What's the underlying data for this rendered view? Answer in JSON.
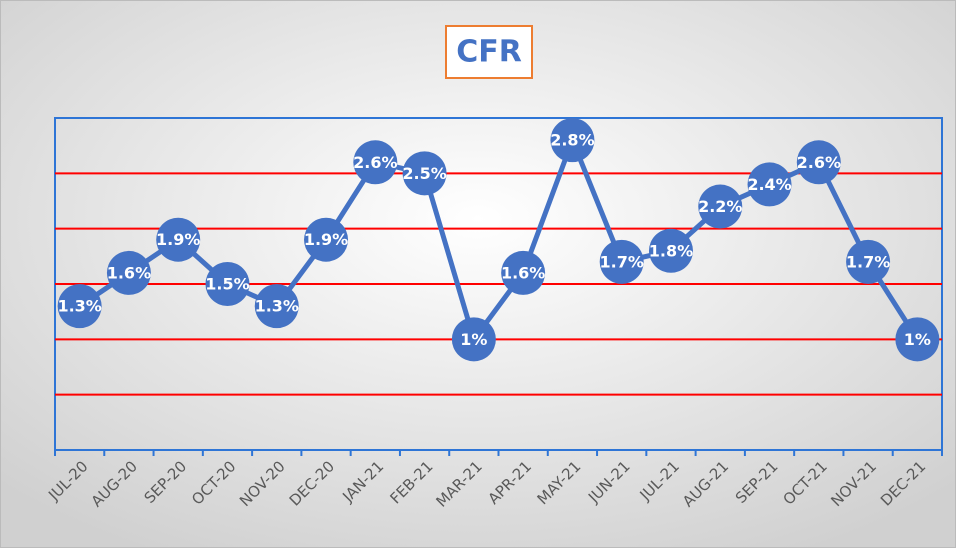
{
  "chart_data": {
    "type": "line",
    "title": "CFR",
    "categories": [
      "JUL-20",
      "AUG-20",
      "SEP-20",
      "OCT-20",
      "NOV-20",
      "DEC-20",
      "JAN-21",
      "FEB-21",
      "MAR-21",
      "APR-21",
      "MAY-21",
      "JUN-21",
      "JUL-21",
      "AUG-21",
      "SEP-21",
      "OCT-21",
      "NOV-21",
      "DEC-21"
    ],
    "series": [
      {
        "name": "CFR",
        "color": "#4472c4",
        "values": [
          1.3,
          1.6,
          1.9,
          1.5,
          1.3,
          1.9,
          2.6,
          2.5,
          1,
          1.6,
          2.8,
          1.7,
          1.8,
          2.2,
          2.4,
          2.6,
          1.7,
          1
        ],
        "value_labels": [
          "1.3%",
          "1.6%",
          "1.9%",
          "1.5%",
          "1.3%",
          "1.9%",
          "2.6%",
          "2.5%",
          "1%",
          "1.6%",
          "2.8%",
          "1.7%",
          "1.8%",
          "2.2%",
          "2.4%",
          "2.6%",
          "1.7%",
          "1%"
        ]
      }
    ],
    "ylim": [
      0,
      3
    ],
    "yticks": [
      0.5,
      1,
      1.5,
      2,
      2.5
    ],
    "grid": true,
    "grid_color": "#ff0000"
  }
}
